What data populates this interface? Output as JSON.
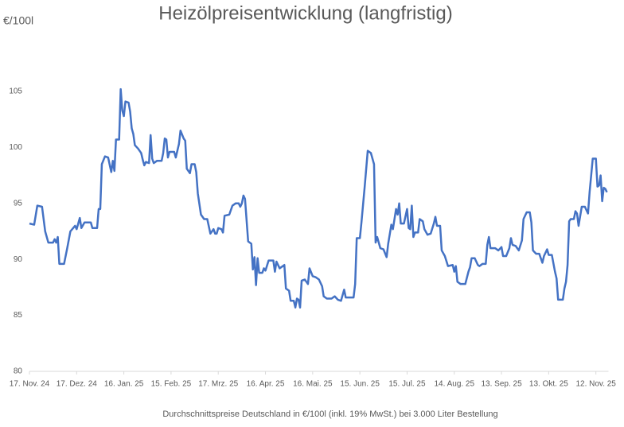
{
  "chart_data": {
    "type": "line",
    "title": "Heizölpreisentwicklung (langfristig)",
    "y_label": "€/100l",
    "footnote": "Durchschnittspreise Deutschland in €/100l (inkl. 19% MwSt.) bei 3.000 Liter Bestellung",
    "color": "#4472c4",
    "xlim": [
      "2024-11-17",
      "2025-11-20"
    ],
    "ylim": [
      80,
      110
    ],
    "yticks": [
      80,
      85,
      90,
      95,
      100,
      105
    ],
    "xticks": [
      {
        "value": "2024-11-17",
        "label": "17. Nov. 24"
      },
      {
        "value": "2024-12-17",
        "label": "17. Dez. 24"
      },
      {
        "value": "2025-01-16",
        "label": "16. Jan. 25"
      },
      {
        "value": "2025-02-15",
        "label": "15. Feb. 25"
      },
      {
        "value": "2025-03-17",
        "label": "17. Mrz. 25"
      },
      {
        "value": "2025-04-16",
        "label": "16. Apr. 25"
      },
      {
        "value": "2025-05-16",
        "label": "16. Mai. 25"
      },
      {
        "value": "2025-06-15",
        "label": "15. Jun. 25"
      },
      {
        "value": "2025-07-15",
        "label": "15. Jul. 25"
      },
      {
        "value": "2025-08-14",
        "label": "14. Aug. 25"
      },
      {
        "value": "2025-09-13",
        "label": "13. Sep. 25"
      },
      {
        "value": "2025-10-13",
        "label": "13. Okt. 25"
      },
      {
        "value": "2025-11-12",
        "label": "12. Nov. 25"
      }
    ],
    "x": [
      "2024-11-17",
      "2024-11-20",
      "2024-11-22",
      "2024-11-25",
      "2024-11-27",
      "2024-11-29",
      "2024-12-02",
      "2024-12-03",
      "2024-12-04",
      "2024-12-05",
      "2024-12-06",
      "2024-12-09",
      "2024-12-11",
      "2024-12-13",
      "2024-12-16",
      "2024-12-17",
      "2024-12-19",
      "2024-12-20",
      "2024-12-22",
      "2024-12-26",
      "2024-12-27",
      "2024-12-30",
      "2024-12-31",
      "2025-01-01",
      "2025-01-02",
      "2025-01-04",
      "2025-01-06",
      "2025-01-08",
      "2025-01-09",
      "2025-01-10",
      "2025-01-11",
      "2025-01-13",
      "2025-01-14",
      "2025-01-15",
      "2025-01-16",
      "2025-01-17",
      "2025-01-19",
      "2025-01-20",
      "2025-01-21",
      "2025-01-22",
      "2025-01-23",
      "2025-01-25",
      "2025-01-27",
      "2025-01-28",
      "2025-01-29",
      "2025-01-30",
      "2025-02-01",
      "2025-02-02",
      "2025-02-03",
      "2025-02-04",
      "2025-02-06",
      "2025-02-09",
      "2025-02-10",
      "2025-02-11",
      "2025-02-12",
      "2025-02-13",
      "2025-02-14",
      "2025-02-17",
      "2025-02-18",
      "2025-02-20",
      "2025-02-21",
      "2025-02-23",
      "2025-02-24",
      "2025-02-25",
      "2025-02-27",
      "2025-02-28",
      "2025-03-02",
      "2025-03-03",
      "2025-03-04",
      "2025-03-06",
      "2025-03-08",
      "2025-03-10",
      "2025-03-12",
      "2025-03-14",
      "2025-03-15",
      "2025-03-16",
      "2025-03-17",
      "2025-03-19",
      "2025-03-20",
      "2025-03-21",
      "2025-03-24",
      "2025-03-26",
      "2025-03-28",
      "2025-03-30",
      "2025-03-31",
      "2025-04-01",
      "2025-04-02",
      "2025-04-03",
      "2025-04-05",
      "2025-04-07",
      "2025-04-08",
      "2025-04-09",
      "2025-04-10",
      "2025-04-11",
      "2025-04-12",
      "2025-04-14",
      "2025-04-15",
      "2025-04-16",
      "2025-04-18",
      "2025-04-21",
      "2025-04-22",
      "2025-04-23",
      "2025-04-25",
      "2025-04-26",
      "2025-04-28",
      "2025-04-29",
      "2025-05-01",
      "2025-05-02",
      "2025-05-04",
      "2025-05-05",
      "2025-05-06",
      "2025-05-07",
      "2025-05-08",
      "2025-05-09",
      "2025-05-11",
      "2025-05-13",
      "2025-05-14",
      "2025-05-16",
      "2025-05-18",
      "2025-05-20",
      "2025-05-22",
      "2025-05-23",
      "2025-05-25",
      "2025-05-28",
      "2025-05-30",
      "2025-06-01",
      "2025-06-03",
      "2025-06-05",
      "2025-06-06",
      "2025-06-11",
      "2025-06-12",
      "2025-06-13",
      "2025-06-15",
      "2025-06-16",
      "2025-06-18",
      "2025-06-20",
      "2025-06-22",
      "2025-06-24",
      "2025-06-25",
      "2025-06-26",
      "2025-06-28",
      "2025-06-30",
      "2025-07-02",
      "2025-07-03",
      "2025-07-05",
      "2025-07-06",
      "2025-07-08",
      "2025-07-09",
      "2025-07-10",
      "2025-07-11",
      "2025-07-13",
      "2025-07-15",
      "2025-07-16",
      "2025-07-17",
      "2025-07-18",
      "2025-07-19",
      "2025-07-20",
      "2025-07-22",
      "2025-07-23",
      "2025-07-25",
      "2025-07-26",
      "2025-07-28",
      "2025-07-30",
      "2025-08-01",
      "2025-08-02",
      "2025-08-03",
      "2025-08-05",
      "2025-08-06",
      "2025-08-08",
      "2025-08-10",
      "2025-08-13",
      "2025-08-14",
      "2025-08-15",
      "2025-08-16",
      "2025-08-18",
      "2025-08-21",
      "2025-08-23",
      "2025-08-24",
      "2025-08-25",
      "2025-08-27",
      "2025-08-29",
      "2025-08-30",
      "2025-09-01",
      "2025-09-03",
      "2025-09-04",
      "2025-09-05",
      "2025-09-06",
      "2025-09-09",
      "2025-09-11",
      "2025-09-13",
      "2025-09-14",
      "2025-09-16",
      "2025-09-18",
      "2025-09-19",
      "2025-09-20",
      "2025-09-22",
      "2025-09-24",
      "2025-09-26",
      "2025-09-27",
      "2025-09-29",
      "2025-10-01",
      "2025-10-02",
      "2025-10-03",
      "2025-10-05",
      "2025-10-07",
      "2025-10-09",
      "2025-10-10",
      "2025-10-12",
      "2025-10-13",
      "2025-10-15",
      "2025-10-17",
      "2025-10-18",
      "2025-10-19",
      "2025-10-22",
      "2025-10-23",
      "2025-10-24",
      "2025-10-25",
      "2025-10-26",
      "2025-10-27",
      "2025-10-29",
      "2025-10-30",
      "2025-10-31",
      "2025-11-01",
      "2025-11-03",
      "2025-11-05",
      "2025-11-06",
      "2025-11-07",
      "2025-11-08",
      "2025-11-10",
      "2025-11-12",
      "2025-11-13",
      "2025-11-14",
      "2025-11-15",
      "2025-11-16",
      "2025-11-17",
      "2025-11-18",
      "2025-11-19"
    ],
    "values": [
      93.2,
      93.1,
      94.8,
      94.7,
      92.5,
      91.5,
      91.5,
      91.8,
      91.5,
      92.0,
      89.6,
      89.6,
      91.0,
      92.5,
      93.0,
      92.7,
      93.7,
      92.8,
      93.3,
      93.3,
      92.8,
      92.8,
      94.5,
      94.5,
      98.5,
      99.2,
      99.1,
      97.8,
      98.8,
      97.9,
      100.7,
      100.7,
      105.2,
      103.3,
      102.8,
      104.1,
      104.0,
      103.2,
      101.7,
      101.2,
      100.2,
      99.9,
      99.5,
      98.9,
      98.4,
      98.7,
      98.6,
      101.1,
      99.0,
      98.6,
      98.8,
      98.8,
      99.5,
      100.8,
      100.7,
      99.1,
      99.6,
      99.6,
      99.1,
      100.3,
      101.5,
      100.8,
      100.6,
      98.1,
      97.7,
      98.5,
      98.5,
      97.8,
      95.9,
      94.0,
      93.6,
      93.6,
      92.3,
      92.7,
      92.3,
      92.3,
      92.8,
      92.7,
      92.4,
      93.9,
      94.0,
      94.8,
      95.0,
      95.0,
      94.7,
      95.0,
      95.7,
      95.4,
      91.6,
      91.4,
      89.1,
      90.2,
      87.7,
      90.1,
      88.8,
      88.8,
      89.2,
      89.0,
      89.9,
      89.9,
      88.9,
      89.8,
      89.2,
      89.3,
      89.5,
      87.4,
      87.2,
      86.3,
      86.3,
      85.7,
      86.5,
      86.4,
      85.7,
      88.1,
      88.2,
      87.8,
      89.2,
      88.5,
      88.4,
      88.2,
      87.6,
      86.7,
      86.5,
      86.5,
      86.7,
      86.4,
      86.3,
      87.3,
      86.6,
      86.6,
      87.8,
      91.9,
      91.9,
      93.3,
      96.4,
      99.7,
      99.5,
      98.5,
      91.5,
      92.0,
      91.0,
      90.9,
      90.2,
      91.4,
      93.1,
      92.7,
      94.5,
      94.0,
      95.0,
      93.2,
      93.2,
      94.5,
      92.8,
      92.7,
      94.8,
      92.0,
      92.4,
      92.4,
      93.6,
      93.4,
      92.7,
      92.2,
      92.3,
      93.2,
      93.8,
      93.0,
      93.0,
      90.8,
      90.3,
      89.4,
      89.5,
      88.9,
      89.4,
      88.0,
      87.8,
      87.8,
      88.9,
      89.3,
      90.1,
      90.1,
      89.5,
      89.4,
      89.6,
      89.6,
      91.3,
      92.0,
      91.0,
      91.0,
      90.8,
      91.1,
      90.3,
      90.3,
      91.0,
      91.9,
      91.3,
      91.2,
      90.8,
      91.7,
      93.6,
      94.2,
      94.2,
      93.3,
      90.8,
      90.5,
      90.5,
      89.7,
      90.3,
      90.9,
      90.4,
      90.4,
      88.9,
      88.3,
      86.4,
      86.4,
      87.4,
      88.0,
      89.5,
      93.4,
      93.6,
      93.6,
      94.3,
      94.1,
      93.0,
      94.7,
      94.7,
      94.4,
      94.1,
      96.0,
      99.0,
      99.0,
      96.5,
      96.6,
      97.5,
      95.2,
      96.4,
      96.3,
      96.0
    ]
  }
}
